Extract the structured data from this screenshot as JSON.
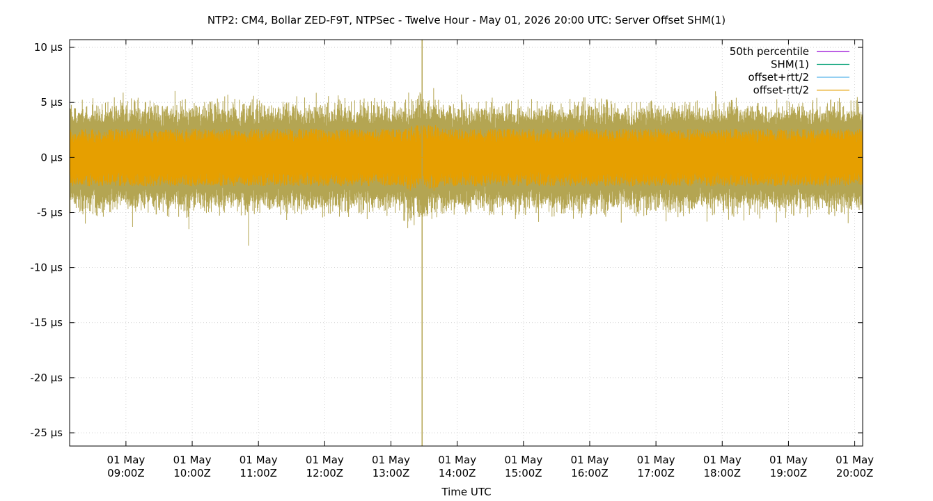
{
  "chart_data": {
    "type": "line",
    "title": "NTP2: CM4, Bollar ZED-F9T, NTPSec - Twelve Hour - May 01, 2026 20:00 UTC: Server Offset SHM(1)",
    "xlabel": "Time UTC",
    "ylabel": "",
    "x_unit": "hours UTC on 01 May 2026",
    "xlim": [
      8.15,
      20.12
    ],
    "ylim": [
      -26.2,
      10.7
    ],
    "yticks": [
      10,
      5,
      0,
      -5,
      -10,
      -15,
      -20,
      -25
    ],
    "ytick_labels": [
      "10 µs",
      "5 µs",
      "0 µs",
      "-5 µs",
      "-10 µs",
      "-15 µs",
      "-20 µs",
      "-25 µs"
    ],
    "xticks": [
      9,
      10,
      11,
      12,
      13,
      14,
      15,
      16,
      17,
      18,
      19,
      20
    ],
    "xtick_labels": [
      [
        "01 May",
        "09:00Z"
      ],
      [
        "01 May",
        "10:00Z"
      ],
      [
        "01 May",
        "11:00Z"
      ],
      [
        "01 May",
        "12:00Z"
      ],
      [
        "01 May",
        "13:00Z"
      ],
      [
        "01 May",
        "14:00Z"
      ],
      [
        "01 May",
        "15:00Z"
      ],
      [
        "01 May",
        "16:00Z"
      ],
      [
        "01 May",
        "17:00Z"
      ],
      [
        "01 May",
        "18:00Z"
      ],
      [
        "01 May",
        "19:00Z"
      ],
      [
        "01 May",
        "20:00Z"
      ]
    ],
    "grid": true,
    "legend_position": "top-right",
    "series": [
      {
        "name": "50th percentile",
        "color": "#9400d3",
        "summary": {
          "median_us": 0.0
        }
      },
      {
        "name": "SHM(1)",
        "color": "#009e73",
        "summary": {
          "typical_band_us": [
            -2.5,
            2.5
          ],
          "median_us": 0.0
        }
      },
      {
        "name": "offset+rtt/2",
        "color": "#56b4e9",
        "summary": {
          "typical_peak_us": [
            3,
            6
          ],
          "max_us": 10.7
        }
      },
      {
        "name": "offset-rtt/2",
        "color": "#e69f00",
        "summary": {
          "typical_trough_us": [
            -3,
            -6
          ],
          "min_us": -26.2
        }
      }
    ],
    "envelope_color": "#b4a552",
    "notable_points": [
      {
        "x": 13.47,
        "y": 10.7
      },
      {
        "x": 13.47,
        "y": -26.2
      },
      {
        "x": 13.47,
        "y": -13.8
      },
      {
        "x": 10.85,
        "y": -8.0
      },
      {
        "x": 9.1,
        "y": -6.3
      },
      {
        "x": 9.95,
        "y": -6.5
      }
    ]
  }
}
